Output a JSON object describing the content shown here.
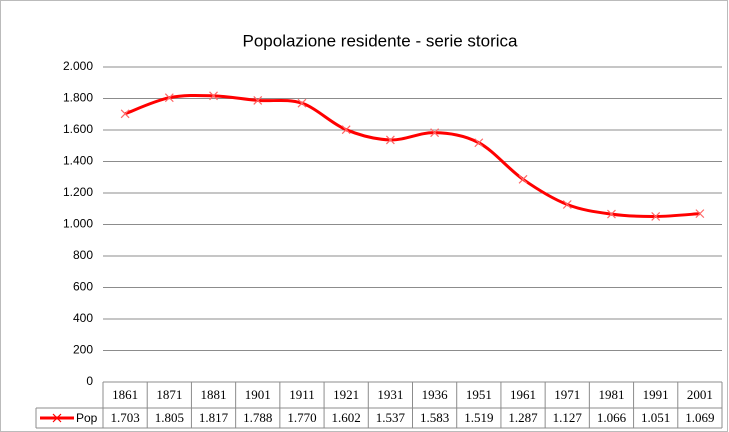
{
  "chart_data": {
    "type": "line",
    "title": "Popolazione residente - serie storica",
    "categories": [
      "1861",
      "1871",
      "1881",
      "1901",
      "1911",
      "1921",
      "1931",
      "1936",
      "1951",
      "1961",
      "1971",
      "1981",
      "1991",
      "2001"
    ],
    "series": [
      {
        "name": "Pop",
        "color": "#ff0000",
        "values": [
          1703,
          1805,
          1817,
          1788,
          1770,
          1602,
          1537,
          1583,
          1519,
          1287,
          1127,
          1066,
          1051,
          1069
        ],
        "value_labels": [
          "1.703",
          "1.805",
          "1.817",
          "1.788",
          "1.770",
          "1.602",
          "1.537",
          "1.583",
          "1.519",
          "1.287",
          "1.127",
          "1.066",
          "1.051",
          "1.069"
        ]
      }
    ],
    "ylim": [
      0,
      2000
    ],
    "yticks": [
      0,
      200,
      400,
      600,
      800,
      {
        "value": 1000,
        "label": "1.000"
      },
      {
        "value": 1200,
        "label": "1.200"
      },
      {
        "value": 1400,
        "label": "1.400"
      },
      {
        "value": 1600,
        "label": "1.600"
      },
      {
        "value": 1800,
        "label": "1.800"
      },
      {
        "value": 2000,
        "label": "2.000"
      }
    ],
    "grid": true
  }
}
